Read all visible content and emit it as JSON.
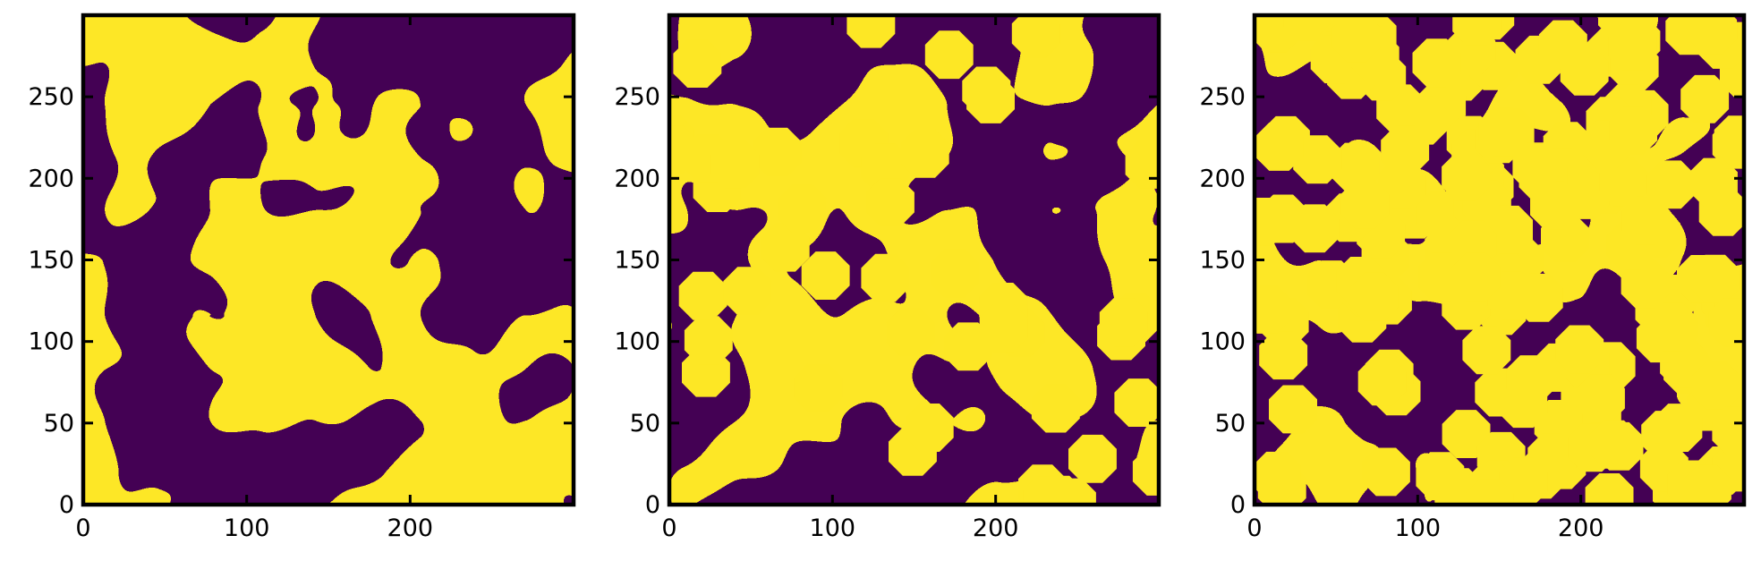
{
  "chart_data": [
    {
      "type": "heatmap",
      "panel": 1,
      "title": "",
      "xlabel": "",
      "ylabel": "",
      "xlim": [
        0,
        300
      ],
      "ylim": [
        0,
        300
      ],
      "xticks": [
        0,
        100,
        200
      ],
      "yticks": [
        0,
        50,
        100,
        150,
        200,
        250
      ],
      "values": [
        0,
        1
      ],
      "colors": {
        "0": "#440154",
        "1": "#fde725"
      },
      "description": "Binary random two-phase field"
    },
    {
      "type": "heatmap",
      "panel": 2,
      "title": "",
      "xlabel": "",
      "ylabel": "",
      "xlim": [
        0,
        300
      ],
      "ylim": [
        0,
        300
      ],
      "xticks": [
        0,
        100,
        200
      ],
      "yticks": [
        0,
        50,
        100,
        150,
        200,
        250
      ],
      "values": [
        0,
        1
      ],
      "colors": {
        "0": "#440154",
        "1": "#fde725"
      },
      "description": "Same field with some yellow disks inserted"
    },
    {
      "type": "heatmap",
      "panel": 3,
      "title": "",
      "xlabel": "",
      "ylabel": "",
      "xlim": [
        0,
        300
      ],
      "ylim": [
        0,
        300
      ],
      "xticks": [
        0,
        100,
        200
      ],
      "yticks": [
        0,
        50,
        100,
        150,
        200,
        250
      ],
      "values": [
        0,
        1
      ],
      "colors": {
        "0": "#440154",
        "1": "#fde725"
      },
      "description": "Field with many yellow disks inserted"
    }
  ]
}
